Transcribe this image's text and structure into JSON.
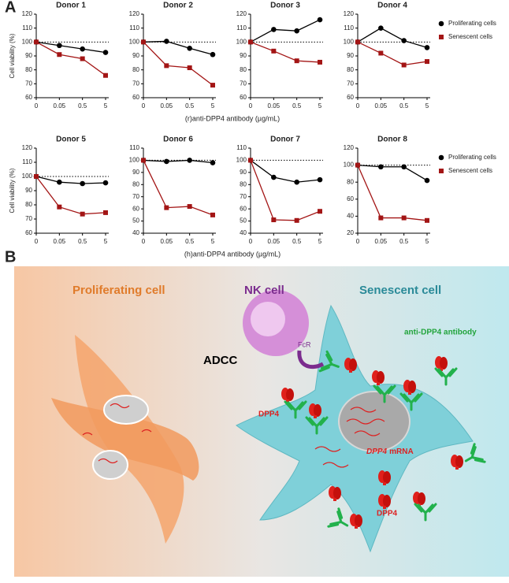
{
  "figure": {
    "panel_a_label": "A",
    "panel_b_label": "B",
    "row_xlabels": [
      "(r)anti-DPP4 antibody (µg/mL)",
      "(h)anti-DPP4 antibody (µg/mL)"
    ]
  },
  "chart_data": [
    {
      "type": "line",
      "title": "Donor 1",
      "ylabel": "Cell viability (%)",
      "categories": [
        "0",
        "0.05",
        "0.5",
        "5"
      ],
      "series": [
        {
          "name": "Proliferating cells",
          "color": "#000000",
          "marker": "circle",
          "values": [
            100,
            97.5,
            95,
            92.5
          ]
        },
        {
          "name": "Senescent cells",
          "color": "#a31515",
          "marker": "square",
          "values": [
            100,
            91,
            88,
            76
          ]
        }
      ],
      "ylim": [
        60,
        120
      ],
      "yticks": [
        60,
        70,
        80,
        90,
        100,
        110,
        120
      ],
      "reference_line": 100,
      "legend": false
    },
    {
      "type": "line",
      "title": "Donor 2",
      "categories": [
        "0",
        "0.05",
        "0.5",
        "5"
      ],
      "series": [
        {
          "name": "Proliferating cells",
          "color": "#000000",
          "marker": "circle",
          "values": [
            100,
            100.5,
            95.5,
            91
          ]
        },
        {
          "name": "Senescent cells",
          "color": "#a31515",
          "marker": "square",
          "values": [
            100,
            83,
            81.5,
            69
          ]
        }
      ],
      "ylim": [
        60,
        120
      ],
      "yticks": [
        60,
        70,
        80,
        90,
        100,
        110,
        120
      ],
      "reference_line": 100,
      "legend": false
    },
    {
      "type": "line",
      "title": "Donor 3",
      "categories": [
        "0",
        "0.05",
        "0.5",
        "5"
      ],
      "series": [
        {
          "name": "Proliferating cells",
          "color": "#000000",
          "marker": "circle",
          "values": [
            100,
            109,
            108,
            116
          ]
        },
        {
          "name": "Senescent cells",
          "color": "#a31515",
          "marker": "square",
          "values": [
            100,
            93.5,
            86.5,
            85.5
          ]
        }
      ],
      "ylim": [
        60,
        120
      ],
      "yticks": [
        60,
        70,
        80,
        90,
        100,
        110,
        120
      ],
      "reference_line": 100,
      "legend": false
    },
    {
      "type": "line",
      "title": "Donor 4",
      "categories": [
        "0",
        "0.05",
        "0.5",
        "5"
      ],
      "series": [
        {
          "name": "Proliferating cells",
          "color": "#000000",
          "marker": "circle",
          "values": [
            100,
            110,
            101,
            96
          ]
        },
        {
          "name": "Senescent cells",
          "color": "#a31515",
          "marker": "square",
          "values": [
            100,
            92,
            83.5,
            86
          ]
        }
      ],
      "ylim": [
        60,
        120
      ],
      "yticks": [
        60,
        70,
        80,
        90,
        100,
        110,
        120
      ],
      "reference_line": 100,
      "legend": true
    },
    {
      "type": "line",
      "title": "Donor 5",
      "ylabel": "Cell viability (%)",
      "categories": [
        "0",
        "0.05",
        "0.5",
        "5"
      ],
      "series": [
        {
          "name": "Proliferating cells",
          "color": "#000000",
          "marker": "circle",
          "values": [
            100,
            96,
            95,
            95.5
          ]
        },
        {
          "name": "Senescent cells",
          "color": "#a31515",
          "marker": "square",
          "values": [
            100,
            78.5,
            73.5,
            74.5
          ]
        }
      ],
      "ylim": [
        60,
        120
      ],
      "yticks": [
        60,
        70,
        80,
        90,
        100,
        110,
        120
      ],
      "reference_line": 100,
      "legend": false
    },
    {
      "type": "line",
      "title": "Donor 6",
      "categories": [
        "0",
        "0.05",
        "0.5",
        "5"
      ],
      "series": [
        {
          "name": "Proliferating cells",
          "color": "#000000",
          "marker": "circle",
          "values": [
            100,
            99,
            100,
            98
          ]
        },
        {
          "name": "Senescent cells",
          "color": "#a31515",
          "marker": "square",
          "values": [
            100,
            61,
            62,
            55
          ]
        }
      ],
      "ylim": [
        40,
        110
      ],
      "yticks": [
        40,
        50,
        60,
        70,
        80,
        90,
        100,
        110
      ],
      "reference_line": 100,
      "legend": false
    },
    {
      "type": "line",
      "title": "Donor 7",
      "categories": [
        "0",
        "0.05",
        "0.5",
        "5"
      ],
      "series": [
        {
          "name": "Proliferating cells",
          "color": "#000000",
          "marker": "circle",
          "values": [
            100,
            86,
            82,
            84
          ]
        },
        {
          "name": "Senescent cells",
          "color": "#a31515",
          "marker": "square",
          "values": [
            100,
            51,
            50.5,
            58
          ]
        }
      ],
      "ylim": [
        40,
        110
      ],
      "yticks": [
        40,
        50,
        60,
        70,
        80,
        90,
        100,
        110
      ],
      "reference_line": 100,
      "legend": false
    },
    {
      "type": "line",
      "title": "Donor 8",
      "categories": [
        "0",
        "0.05",
        "0.5",
        "5"
      ],
      "series": [
        {
          "name": "Proliferating cells",
          "color": "#000000",
          "marker": "circle",
          "values": [
            100,
            98,
            98,
            82
          ]
        },
        {
          "name": "Senescent cells",
          "color": "#a31515",
          "marker": "square",
          "values": [
            100,
            38,
            38,
            35
          ]
        }
      ],
      "ylim": [
        20,
        120
      ],
      "yticks": [
        20,
        40,
        60,
        80,
        100,
        120
      ],
      "reference_line": 100,
      "legend": true
    }
  ],
  "diagram": {
    "proliferating": "Proliferating cell",
    "nk": "NK cell",
    "senescent": "Senescent cell",
    "adcc": "ADCC",
    "fcr": "FcR",
    "antibody": "anti-DPP4 antibody",
    "dpp4_left": "DPP4",
    "mrna_gene": "DPP4",
    "mrna": "mRNA",
    "dpp4_bottom": "DPP4"
  }
}
